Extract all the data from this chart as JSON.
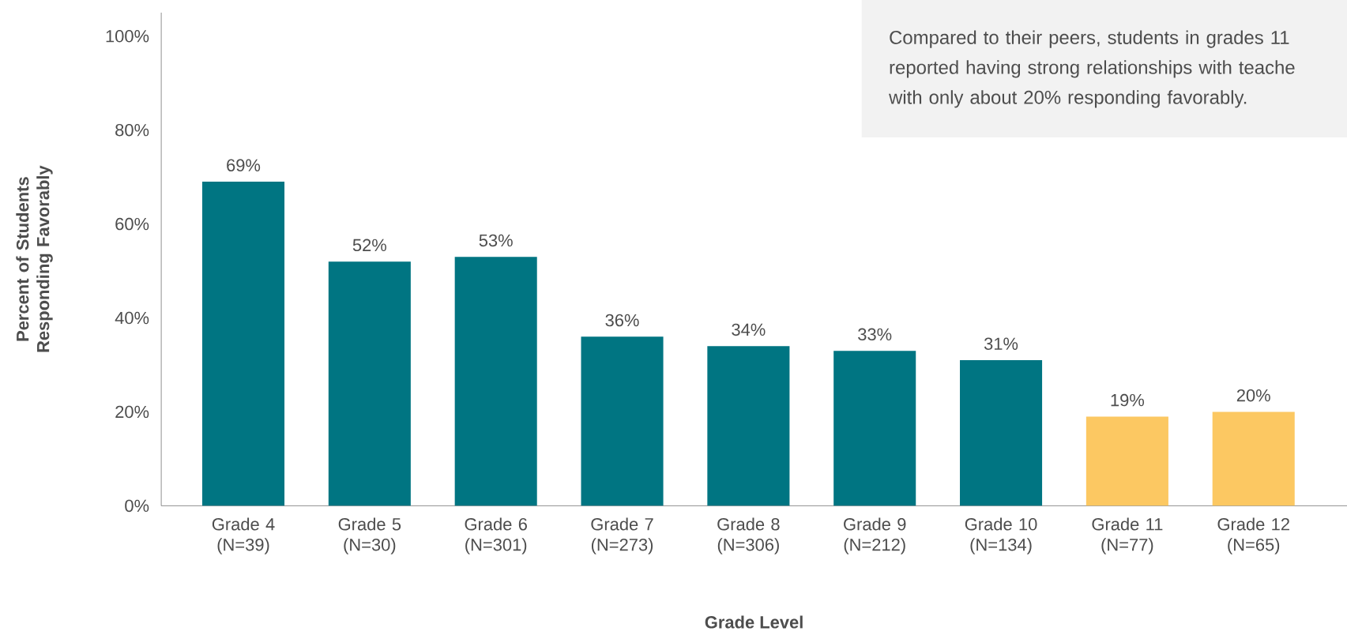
{
  "chart_data": {
    "type": "bar",
    "xlabel": "Grade Level",
    "ylabel": "Percent of Students Responding Favorably",
    "annotations": [
      "Compared to their peers, students in grades 11 reported having strong relationships with teache with only about 20% responding favorably."
    ],
    "categories": [
      "Grade 4 (N=39)",
      "Grade 5 (N=30)",
      "Grade 6 (N=301)",
      "Grade 7 (N=273)",
      "Grade 8 (N=306)",
      "Grade 9 (N=212)",
      "Grade 10 (N=134)",
      "Grade 11 (N=77)",
      "Grade 12 (N=65)"
    ],
    "values": [
      69,
      52,
      53,
      36,
      34,
      33,
      31,
      19,
      20
    ],
    "value_labels": [
      "69%",
      "52%",
      "53%",
      "36%",
      "34%",
      "33%",
      "31%",
      "19%",
      "20%"
    ],
    "colors": [
      "#007582",
      "#007582",
      "#007582",
      "#007582",
      "#007582",
      "#007582",
      "#007582",
      "#fcc862",
      "#fcc862"
    ],
    "ylim": [
      0,
      105
    ],
    "yticks": [
      {
        "value": 0,
        "label": "0%"
      },
      {
        "value": 20,
        "label": "20%"
      },
      {
        "value": 40,
        "label": "40%"
      },
      {
        "value": 60,
        "label": "60%"
      },
      {
        "value": 80,
        "label": "80%"
      },
      {
        "value": 100,
        "label": "100%"
      }
    ],
    "grid": false
  }
}
